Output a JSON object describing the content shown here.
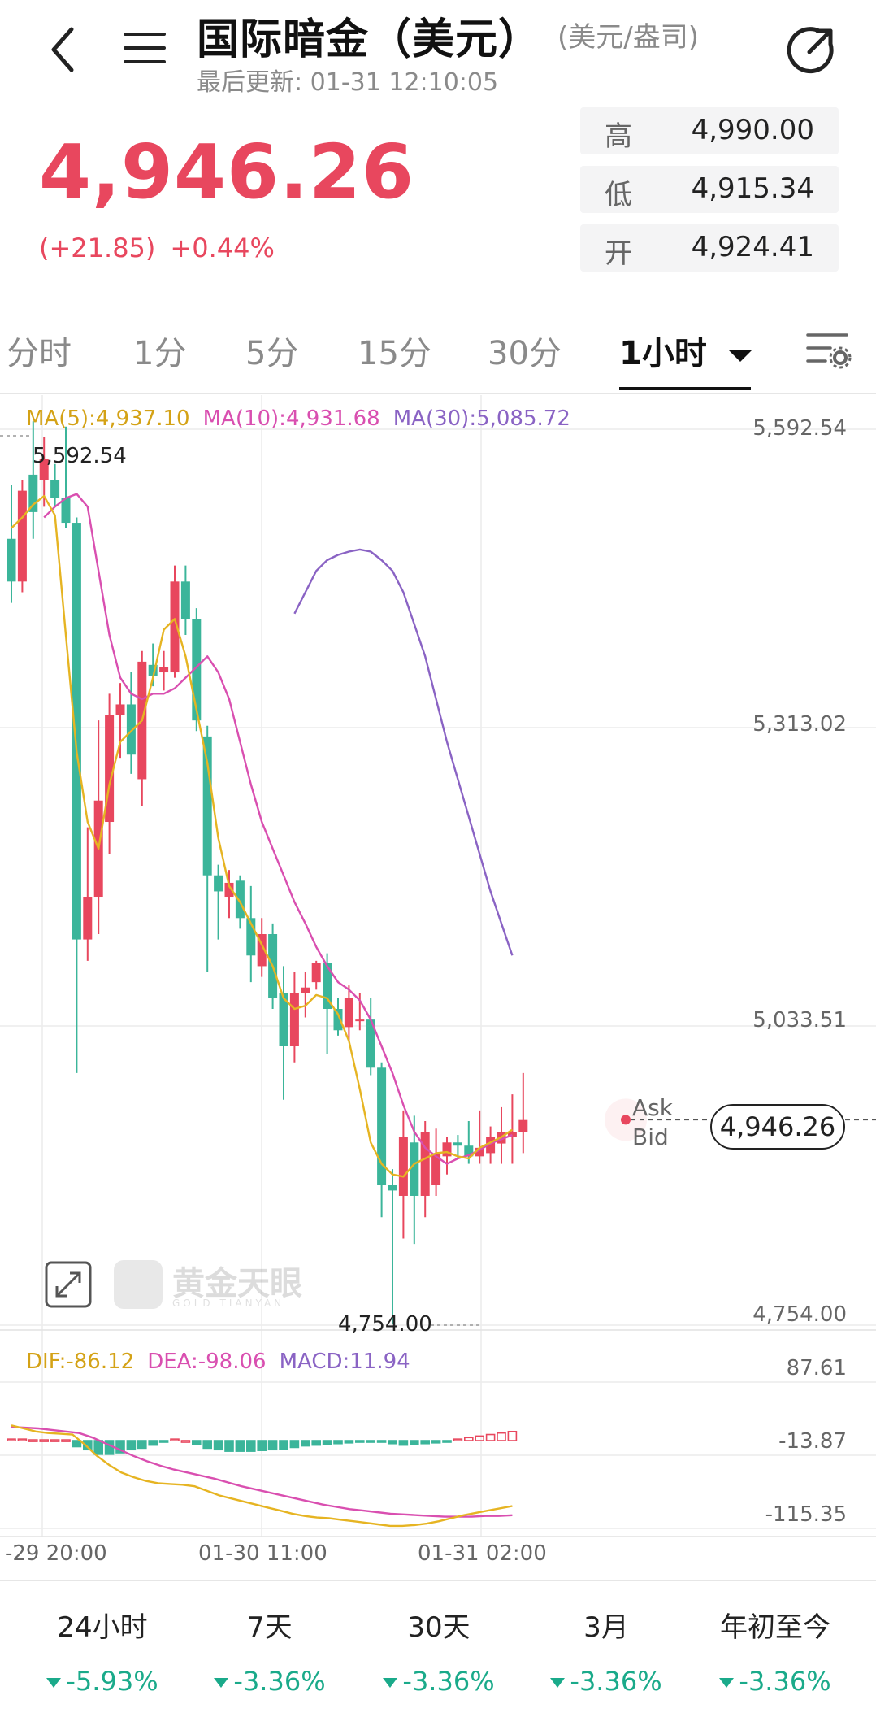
{
  "header": {
    "title": "国际暗金（美元）",
    "unit": "(美元/盎司)",
    "updated": "最后更新: 01-31 12:10:05"
  },
  "quote": {
    "price": "4,946.26",
    "change": "(+21.85)",
    "change_pct": "+0.44%",
    "high_label": "高",
    "high": "4,990.00",
    "low_label": "低",
    "low": "4,915.34",
    "open_label": "开",
    "open": "4,924.41"
  },
  "tabs": [
    "分时",
    "1分",
    "5分",
    "15分",
    "30分",
    "1小时"
  ],
  "active_tab": "1小时",
  "ma_legend": {
    "ma5": "MA(5):4,937.10",
    "ma10": "MA(10):4,931.68",
    "ma30": "MA(30):5,085.72"
  },
  "macd_legend": {
    "dif": "DIF:-86.12",
    "dea": "DEA:-98.06",
    "macd": "MACD:11.94"
  },
  "y_axis": [
    "5,592.54",
    "5,313.02",
    "5,033.51",
    "4,754.00"
  ],
  "macd_y_axis": [
    "87.61",
    "-13.87",
    "-115.35"
  ],
  "x_axis": [
    "-29 20:00",
    "01-30 11:00",
    "01-31 02:00"
  ],
  "annotations": {
    "max": "5,592.54",
    "min": "4,754.00",
    "ask": "Ask",
    "bid": "Bid",
    "last": "4,946.26"
  },
  "watermark": {
    "cn": "黄金天眼",
    "en": "GOLD TIANYAN"
  },
  "performance": [
    {
      "label": "24小时",
      "value": "-5.93%"
    },
    {
      "label": "7天",
      "value": "-3.36%"
    },
    {
      "label": "30天",
      "value": "-3.36%"
    },
    {
      "label": "3月",
      "value": "-3.36%"
    },
    {
      "label": "年初至今",
      "value": "-3.36%"
    }
  ],
  "colors": {
    "up": "#e8475e",
    "down": "#3bb59a",
    "ma5": "#e6b422",
    "ma10": "#d94fb0",
    "ma30": "#8a63c4"
  },
  "chart_data": {
    "type": "candlestick",
    "interval": "1小时",
    "ylim": [
      4754.0,
      5592.54
    ],
    "candles": [
      {
        "o": 5490,
        "h": 5540,
        "l": 5430,
        "c": 5450
      },
      {
        "o": 5450,
        "h": 5545,
        "l": 5440,
        "c": 5535
      },
      {
        "o": 5550,
        "h": 5600,
        "l": 5490,
        "c": 5515
      },
      {
        "o": 5545,
        "h": 5585,
        "l": 5520,
        "c": 5565
      },
      {
        "o": 5545,
        "h": 5560,
        "l": 5520,
        "c": 5528
      },
      {
        "o": 5528,
        "h": 5595,
        "l": 5500,
        "c": 5505
      },
      {
        "o": 5505,
        "h": 5510,
        "l": 4990,
        "c": 5115
      },
      {
        "o": 5115,
        "h": 5220,
        "l": 5095,
        "c": 5155
      },
      {
        "o": 5155,
        "h": 5320,
        "l": 5120,
        "c": 5245
      },
      {
        "o": 5225,
        "h": 5345,
        "l": 5195,
        "c": 5325
      },
      {
        "o": 5325,
        "h": 5355,
        "l": 5285,
        "c": 5335
      },
      {
        "o": 5335,
        "h": 5365,
        "l": 5270,
        "c": 5288
      },
      {
        "o": 5265,
        "h": 5385,
        "l": 5240,
        "c": 5375
      },
      {
        "o": 5372,
        "h": 5392,
        "l": 5352,
        "c": 5362
      },
      {
        "o": 5365,
        "h": 5385,
        "l": 5348,
        "c": 5370
      },
      {
        "o": 5365,
        "h": 5465,
        "l": 5360,
        "c": 5450
      },
      {
        "o": 5450,
        "h": 5465,
        "l": 5400,
        "c": 5415
      },
      {
        "o": 5415,
        "h": 5425,
        "l": 5310,
        "c": 5320
      },
      {
        "o": 5305,
        "h": 5315,
        "l": 5085,
        "c": 5175
      },
      {
        "o": 5175,
        "h": 5185,
        "l": 5115,
        "c": 5160
      },
      {
        "o": 5155,
        "h": 5180,
        "l": 5135,
        "c": 5168
      },
      {
        "o": 5170,
        "h": 5175,
        "l": 5125,
        "c": 5135
      },
      {
        "o": 5135,
        "h": 5165,
        "l": 5075,
        "c": 5100
      },
      {
        "o": 5090,
        "h": 5135,
        "l": 5080,
        "c": 5120
      },
      {
        "o": 5120,
        "h": 5130,
        "l": 5050,
        "c": 5060
      },
      {
        "o": 5065,
        "h": 5090,
        "l": 4965,
        "c": 5015
      },
      {
        "o": 5015,
        "h": 5085,
        "l": 5000,
        "c": 5065
      },
      {
        "o": 5065,
        "h": 5085,
        "l": 5042,
        "c": 5070
      },
      {
        "o": 5075,
        "h": 5095,
        "l": 5068,
        "c": 5093
      },
      {
        "o": 5093,
        "h": 5102,
        "l": 5008,
        "c": 5050
      },
      {
        "o": 5050,
        "h": 5060,
        "l": 5025,
        "c": 5030
      },
      {
        "o": 5033,
        "h": 5072,
        "l": 5020,
        "c": 5060
      },
      {
        "o": 5040,
        "h": 5065,
        "l": 5030,
        "c": 5040
      },
      {
        "o": 5040,
        "h": 5060,
        "l": 4988,
        "c": 4995
      },
      {
        "o": 4995,
        "h": 5000,
        "l": 4855,
        "c": 4885
      },
      {
        "o": 4885,
        "h": 4900,
        "l": 4755,
        "c": 4880
      },
      {
        "o": 4875,
        "h": 4955,
        "l": 4835,
        "c": 4930
      },
      {
        "o": 4925,
        "h": 4950,
        "l": 4830,
        "c": 4875
      },
      {
        "o": 4875,
        "h": 4945,
        "l": 4855,
        "c": 4935
      },
      {
        "o": 4885,
        "h": 4938,
        "l": 4875,
        "c": 4915
      },
      {
        "o": 4912,
        "h": 4930,
        "l": 4895,
        "c": 4925
      },
      {
        "o": 4925,
        "h": 4932,
        "l": 4910,
        "c": 4922
      },
      {
        "o": 4922,
        "h": 4945,
        "l": 4905,
        "c": 4912
      },
      {
        "o": 4912,
        "h": 4955,
        "l": 4905,
        "c": 4920
      },
      {
        "o": 4915,
        "h": 4940,
        "l": 4905,
        "c": 4930
      },
      {
        "o": 4924,
        "h": 4958,
        "l": 4905,
        "c": 4935
      },
      {
        "o": 4930,
        "h": 4970,
        "l": 4905,
        "c": 4935
      },
      {
        "o": 4935,
        "h": 4990,
        "l": 4915,
        "c": 4946
      }
    ],
    "ma5": [
      5500,
      5510,
      5522,
      5530,
      5512,
      5400,
      5290,
      5225,
      5200,
      5260,
      5300,
      5310,
      5320,
      5360,
      5405,
      5415,
      5380,
      5330,
      5280,
      5210,
      5165,
      5150,
      5130,
      5110,
      5090,
      5060,
      5050,
      5053,
      5063,
      5060,
      5045,
      5020,
      4975,
      4925,
      4905,
      4895,
      4893,
      4905,
      4910,
      4915,
      4916,
      4912,
      4910,
      4920,
      4925,
      4930,
      4937
    ],
    "ma10": [
      5510,
      5520,
      5528,
      5532,
      5520,
      5460,
      5400,
      5360,
      5345,
      5340,
      5345,
      5345,
      5350,
      5360,
      5370,
      5380,
      5365,
      5340,
      5300,
      5260,
      5225,
      5200,
      5175,
      5150,
      5130,
      5108,
      5090,
      5075,
      5068,
      5058,
      5040,
      5015,
      4990,
      4960,
      4935,
      4920,
      4912,
      4905,
      4910,
      4913,
      4918,
      4924,
      4928,
      4932
    ],
    "ma30": [
      5420,
      5440,
      5460,
      5470,
      5475,
      5478,
      5480,
      5478,
      5470,
      5460,
      5440,
      5410,
      5380,
      5340,
      5300,
      5265,
      5230,
      5195,
      5160,
      5130,
      5100
    ]
  },
  "macd_data": {
    "ylim": [
      -115.35,
      87.61
    ],
    "histogram": [
      2,
      2,
      1,
      1,
      1,
      1,
      -8,
      -12,
      -18,
      -18,
      -16,
      -12,
      -10,
      -6,
      -2,
      2,
      0,
      -5,
      -10,
      -12,
      -14,
      -14,
      -14,
      -13,
      -12,
      -11,
      -9,
      -7,
      -6,
      -5,
      -4,
      -3,
      -2,
      -2,
      -2,
      -4,
      -6,
      -5,
      -4,
      -3,
      -2,
      2,
      4,
      6,
      8,
      10,
      12
    ],
    "dif": [
      20,
      16,
      12,
      10,
      9,
      8,
      -5,
      -20,
      -32,
      -42,
      -48,
      -53,
      -56,
      -57,
      -58,
      -60,
      -66,
      -72,
      -76,
      -80,
      -84,
      -88,
      -92,
      -96,
      -99,
      -101,
      -102,
      -104,
      -106,
      -108,
      -110,
      -112,
      -112,
      -111,
      -109,
      -106,
      -102,
      -98,
      -95,
      -92,
      -89,
      -86
    ],
    "dea": [
      18,
      17,
      16,
      14,
      12,
      10,
      4,
      -4,
      -12,
      -20,
      -27,
      -33,
      -38,
      -42,
      -46,
      -50,
      -55,
      -60,
      -64,
      -68,
      -72,
      -76,
      -80,
      -84,
      -87,
      -90,
      -92,
      -94,
      -96,
      -97,
      -98,
      -99,
      -100,
      -100,
      -100,
      -99,
      -99,
      -98
    ]
  }
}
